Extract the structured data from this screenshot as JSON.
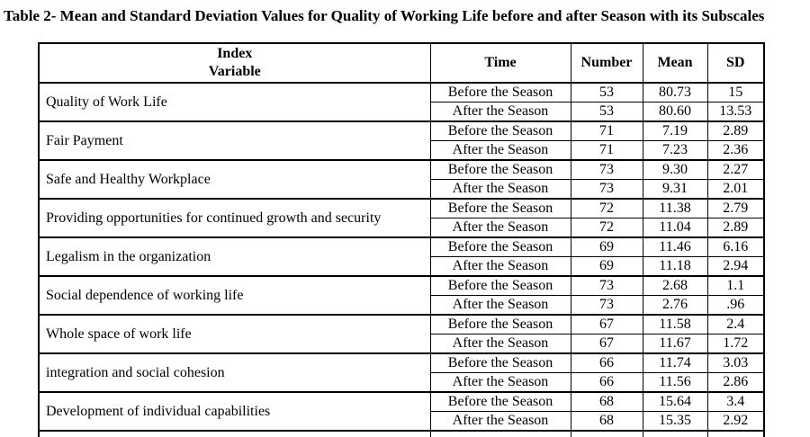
{
  "title": "Table 2- Mean and Standard Deviation Values for Quality of Working Life before and after Season with its Subscales",
  "colors": {
    "border": "#000000",
    "text": "#000000",
    "background": "#ffffff"
  },
  "table": {
    "headers": {
      "index": "Index",
      "variable": "Variable",
      "time": "Time",
      "number": "Number",
      "mean": "Mean",
      "sd": "SD"
    },
    "groups": [
      {
        "variable": "Quality of Work Life",
        "rows": [
          {
            "time": "Before the Season",
            "number": "53",
            "mean": "80.73",
            "sd": "15"
          },
          {
            "time": "After the Season",
            "number": "53",
            "mean": "80.60",
            "sd": "13.53"
          }
        ]
      },
      {
        "variable": "Fair Payment",
        "rows": [
          {
            "time": "Before the Season",
            "number": "71",
            "mean": "7.19",
            "sd": "2.89"
          },
          {
            "time": "After the Season",
            "number": "71",
            "mean": "7.23",
            "sd": "2.36"
          }
        ]
      },
      {
        "variable": "Safe and Healthy Workplace",
        "rows": [
          {
            "time": "Before the Season",
            "number": "73",
            "mean": "9.30",
            "sd": "2.27"
          },
          {
            "time": "After the Season",
            "number": "73",
            "mean": "9.31",
            "sd": "2.01"
          }
        ]
      },
      {
        "variable": "Providing opportunities for continued growth and security",
        "rows": [
          {
            "time": "Before the Season",
            "number": "72",
            "mean": "11.38",
            "sd": "2.79"
          },
          {
            "time": "After the Season",
            "number": "72",
            "mean": "11.04",
            "sd": "2.89"
          }
        ]
      },
      {
        "variable": "Legalism in the organization",
        "rows": [
          {
            "time": "Before the Season",
            "number": "69",
            "mean": "11.46",
            "sd": "6.16"
          },
          {
            "time": "After the Season",
            "number": "69",
            "mean": "11.18",
            "sd": "2.94"
          }
        ]
      },
      {
        "variable": "Social dependence of working life",
        "rows": [
          {
            "time": "Before the Season",
            "number": "73",
            "mean": "2.68",
            "sd": "1.1"
          },
          {
            "time": "After the Season",
            "number": "73",
            "mean": "2.76",
            "sd": ".96"
          }
        ]
      },
      {
        "variable": "Whole space of work life",
        "rows": [
          {
            "time": "Before the Season",
            "number": "67",
            "mean": "11.58",
            "sd": "2.4"
          },
          {
            "time": "After the Season",
            "number": "67",
            "mean": "11.67",
            "sd": "1.72"
          }
        ]
      },
      {
        "variable": "integration and social cohesion",
        "rows": [
          {
            "time": "Before the Season",
            "number": "66",
            "mean": "11.74",
            "sd": "3.03"
          },
          {
            "time": "After the Season",
            "number": "66",
            "mean": "11.56",
            "sd": "2.86"
          }
        ]
      },
      {
        "variable": "Development of individual capabilities",
        "rows": [
          {
            "time": "Before the Season",
            "number": "68",
            "mean": "15.64",
            "sd": "3.4"
          },
          {
            "time": "After the Season",
            "number": "68",
            "mean": "15.35",
            "sd": "2.92"
          }
        ]
      }
    ]
  }
}
